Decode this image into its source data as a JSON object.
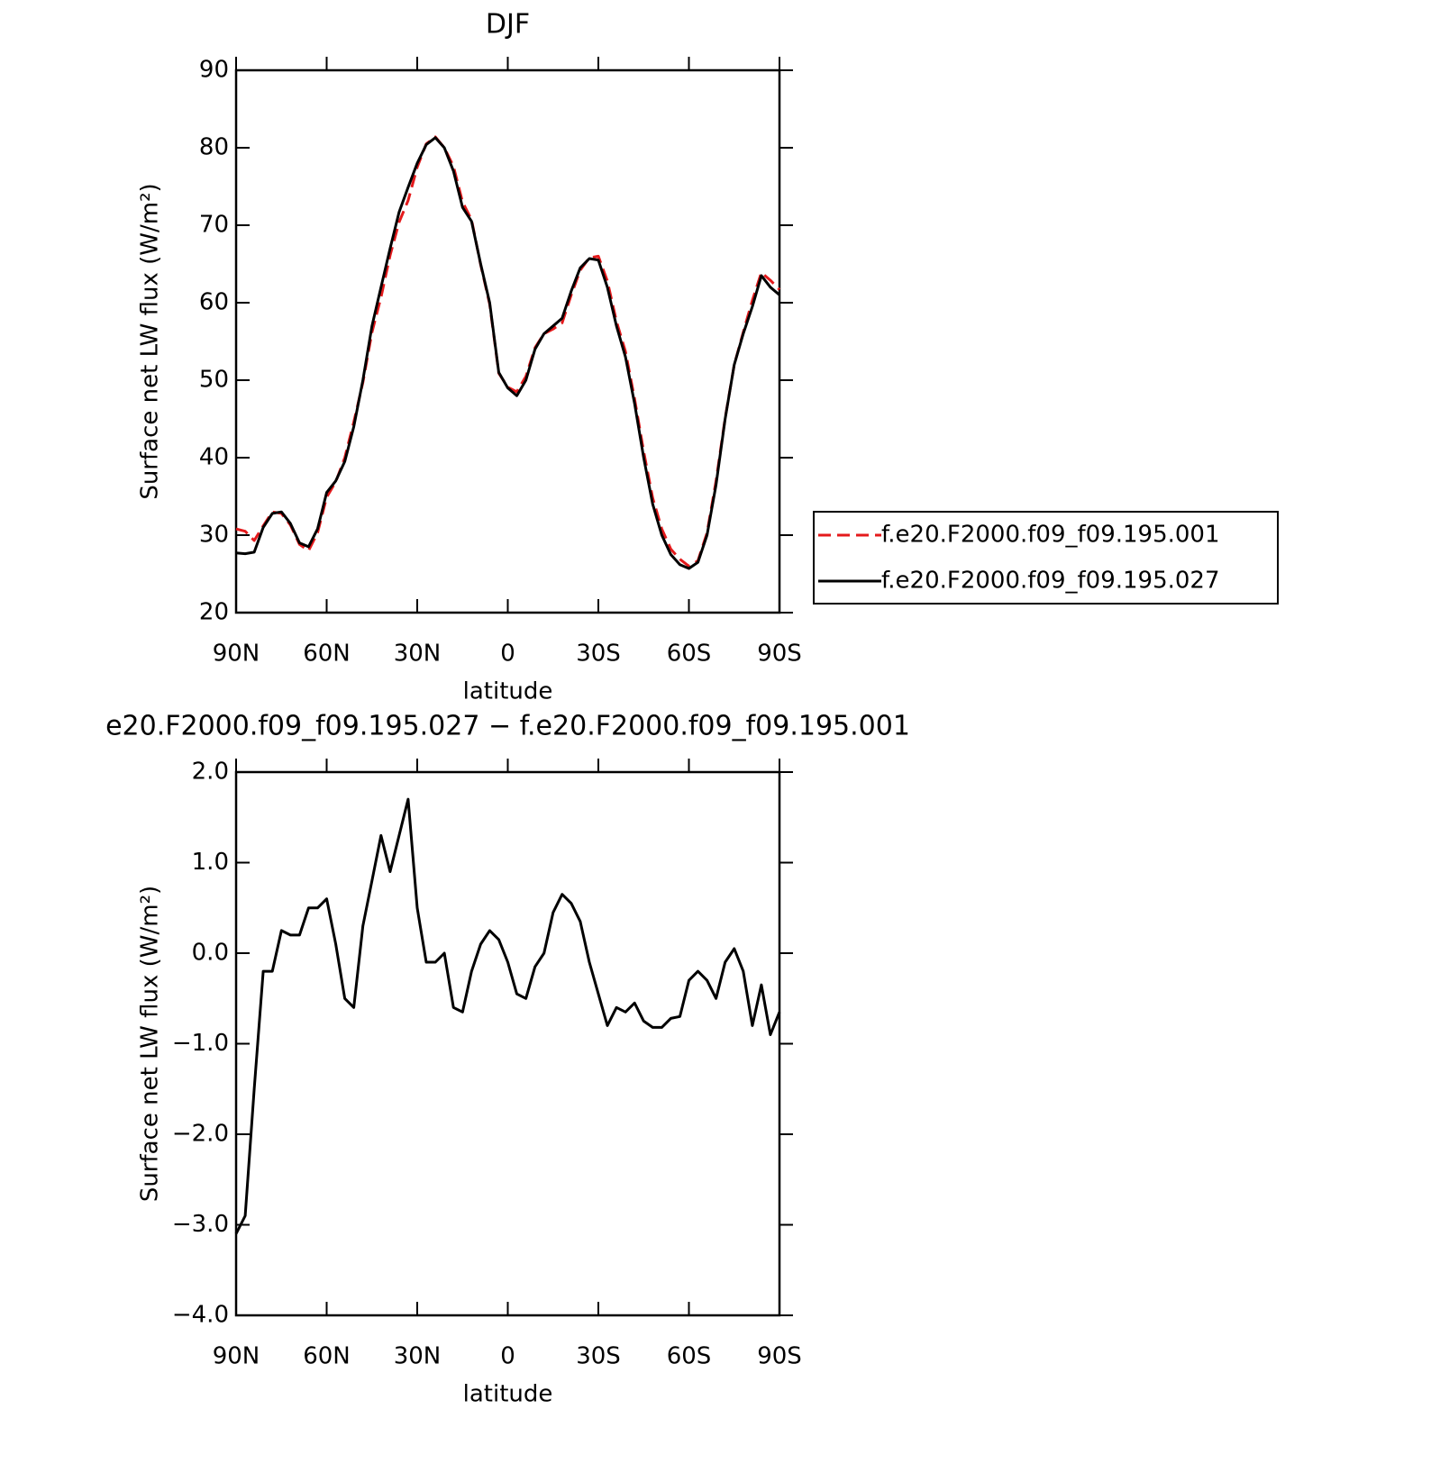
{
  "chart_data": [
    {
      "type": "line",
      "title": "DJF",
      "x_label": "latitude",
      "y_label": "Surface net LW flux (W/m²)",
      "x": [
        90,
        87,
        84,
        81,
        78,
        75,
        72,
        69,
        66,
        63,
        60,
        57,
        54,
        51,
        48,
        45,
        42,
        39,
        36,
        33,
        30,
        27,
        24,
        21,
        18,
        15,
        12,
        9,
        6,
        3,
        0,
        -3,
        -6,
        -9,
        -12,
        -15,
        -18,
        -21,
        -24,
        -27,
        -30,
        -33,
        -36,
        -39,
        -42,
        -45,
        -48,
        -51,
        -54,
        -57,
        -60,
        -63,
        -66,
        -69,
        -72,
        -75,
        -78,
        -81,
        -84,
        -87,
        -90
      ],
      "series": [
        {
          "name": "f.e20.F2000.f09_f09.195.001",
          "color": "#e41a1c",
          "linestyle": "dashed",
          "values": [
            30.8,
            30.5,
            29.3,
            31.2,
            33.0,
            32.8,
            31.3,
            28.8,
            28.0,
            30.3,
            34.9,
            36.9,
            40.0,
            44.6,
            49.7,
            56.2,
            60.7,
            66.1,
            70.4,
            73.2,
            77.5,
            80.5,
            81.4,
            80.0,
            77.6,
            73.0,
            70.7,
            64.9,
            59.8,
            50.9,
            49.1,
            48.5,
            50.5,
            54.2,
            56.0,
            56.6,
            57.4,
            61.0,
            64.2,
            65.8,
            66.0,
            62.8,
            57.6,
            53.7,
            47.6,
            40.8,
            34.8,
            30.8,
            28.2,
            26.9,
            26.0,
            26.7,
            30.3,
            37.0,
            45.1,
            52.0,
            56.2,
            60.3,
            63.9,
            62.9,
            61.7
          ]
        },
        {
          "name": "f.e20.F2000.f09_f09.195.027",
          "color": "#000000",
          "linestyle": "solid",
          "values": [
            27.7,
            27.6,
            27.8,
            31,
            32.8,
            33,
            31.5,
            29,
            28.5,
            30.8,
            35.5,
            37,
            39.5,
            44,
            50,
            57,
            62,
            67,
            71.7,
            74.9,
            78,
            80.4,
            81.3,
            80,
            77,
            72.3,
            70.5,
            65,
            60,
            51,
            49,
            48,
            50,
            54,
            56,
            57,
            58,
            61.5,
            64.5,
            65.7,
            65.5,
            62,
            57,
            53,
            47,
            40,
            34,
            30,
            27.5,
            26.2,
            25.7,
            26.5,
            30,
            36.5,
            45,
            52,
            56,
            59.5,
            63.5,
            62,
            61
          ]
        }
      ],
      "xlim": [
        90,
        -90
      ],
      "xticks": [
        {
          "value": 90,
          "label": "90N"
        },
        {
          "value": 60,
          "label": "60N"
        },
        {
          "value": 30,
          "label": "30N"
        },
        0,
        {
          "value": -30,
          "label": "30S"
        },
        {
          "value": -60,
          "label": "60S"
        },
        {
          "value": -90,
          "label": "90S"
        }
      ],
      "ylim": [
        20,
        90
      ],
      "yticks": [
        20,
        30,
        40,
        50,
        60,
        70,
        80,
        90
      ],
      "legend": "right"
    },
    {
      "type": "line",
      "title": "e20.F2000.f09_f09.195.027 − f.e20.F2000.f09_f09.195.001",
      "x_label": "latitude",
      "y_label": "Surface net LW flux (W/m²)",
      "x": [
        90,
        87,
        84,
        81,
        78,
        75,
        72,
        69,
        66,
        63,
        60,
        57,
        54,
        51,
        48,
        45,
        42,
        39,
        36,
        33,
        30,
        27,
        24,
        21,
        18,
        15,
        12,
        9,
        6,
        3,
        0,
        -3,
        -6,
        -9,
        -12,
        -15,
        -18,
        -21,
        -24,
        -27,
        -30,
        -33,
        -36,
        -39,
        -42,
        -45,
        -48,
        -51,
        -54,
        -57,
        -60,
        -63,
        -66,
        -69,
        -72,
        -75,
        -78,
        -81,
        -84,
        -87,
        -90
      ],
      "series": [
        {
          "color": "#000000",
          "linestyle": "solid",
          "values": [
            -3.1,
            -2.9,
            -1.5,
            -0.2,
            -0.2,
            0.25,
            0.2,
            0.2,
            0.5,
            0.5,
            0.6,
            0.1,
            -0.5,
            -0.6,
            0.3,
            0.8,
            1.3,
            0.9,
            1.3,
            1.7,
            0.5,
            -0.1,
            -0.1,
            0.0,
            -0.6,
            -0.65,
            -0.2,
            0.1,
            0.25,
            0.15,
            -0.1,
            -0.45,
            -0.5,
            -0.15,
            0.0,
            0.45,
            0.65,
            0.55,
            0.35,
            -0.1,
            -0.45,
            -0.8,
            -0.6,
            -0.65,
            -0.55,
            -0.75,
            -0.82,
            -0.82,
            -0.72,
            -0.7,
            -0.3,
            -0.2,
            -0.3,
            -0.5,
            -0.1,
            0.05,
            -0.2,
            -0.8,
            -0.35,
            -0.9,
            -0.65
          ]
        }
      ],
      "xlim": [
        90,
        -90
      ],
      "xticks": [
        {
          "value": 90,
          "label": "90N"
        },
        {
          "value": 60,
          "label": "60N"
        },
        {
          "value": 30,
          "label": "30N"
        },
        0,
        {
          "value": -30,
          "label": "30S"
        },
        {
          "value": -60,
          "label": "60S"
        },
        {
          "value": -90,
          "label": "90S"
        }
      ],
      "ylim": [
        -4,
        2
      ],
      "yticks": [
        {
          "value": -4,
          "label": "−4.0"
        },
        {
          "value": -3,
          "label": "−3.0"
        },
        {
          "value": -2,
          "label": "−2.0"
        },
        {
          "value": -1,
          "label": "−1.0"
        },
        {
          "value": 0,
          "label": "0.0"
        },
        {
          "value": 1,
          "label": "1.0"
        },
        {
          "value": 2,
          "label": "2.0"
        }
      ]
    }
  ]
}
